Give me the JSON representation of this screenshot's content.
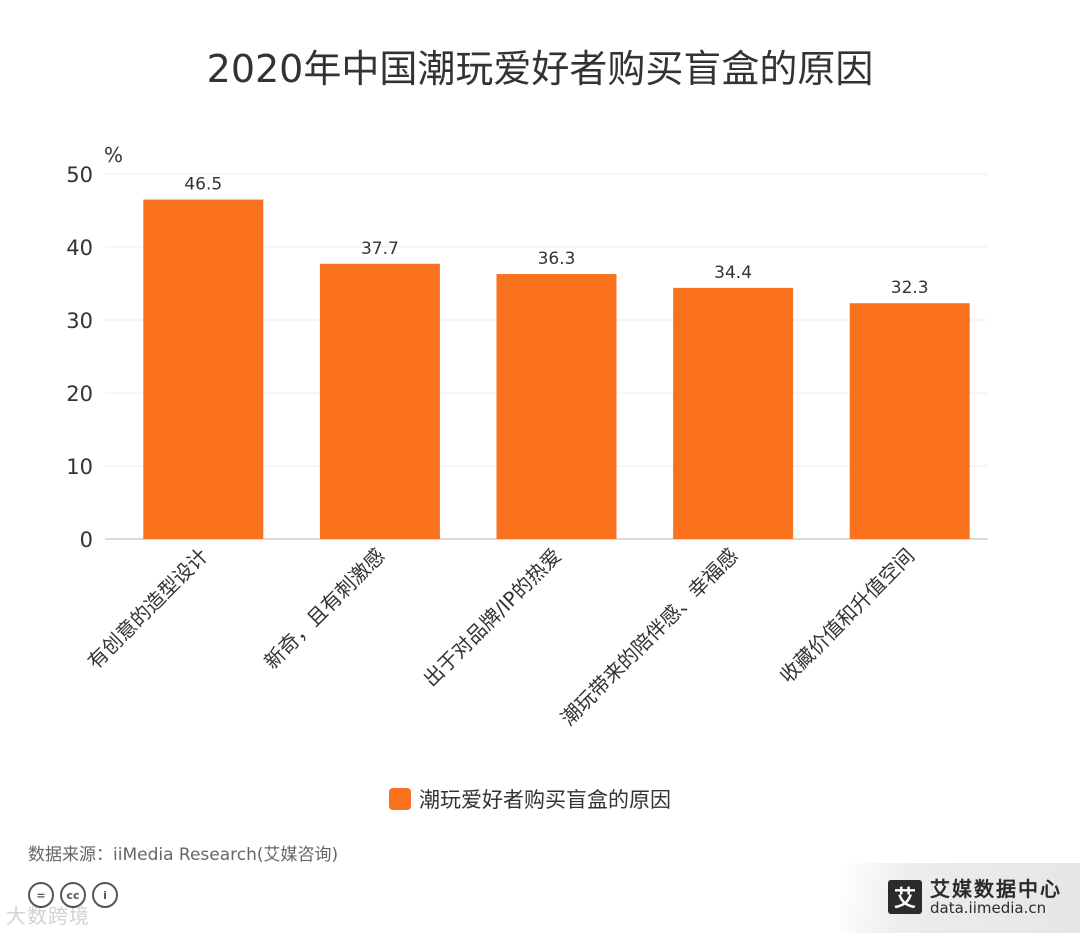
{
  "chart_data": {
    "type": "bar",
    "title": "2020年中国潮玩爱好者购买盲盒的原因",
    "ylabel": "%",
    "ylim": [
      0,
      50
    ],
    "yticks": [
      0,
      10,
      20,
      30,
      40,
      50
    ],
    "grid": true,
    "categories": [
      "有创意的造型设计",
      "新奇，且有刺激感",
      "出于对品牌/IP的热爱",
      "潮玩带来的陪伴感、幸福感",
      "收藏价值和升值空间"
    ],
    "series": [
      {
        "name": "潮玩爱好者购买盲盒的原因",
        "values": [
          46.5,
          37.7,
          36.3,
          34.4,
          32.3
        ]
      }
    ],
    "legend_position": "bottom-center"
  },
  "colors": {
    "bar": "#FA721E",
    "grid": "#ececec",
    "axis": "#cfcfcf"
  },
  "source": "数据来源：iiMedia Research(艾媒咨询)",
  "watermark": "大数跨境",
  "brand": {
    "icon_text": "艾",
    "name": "艾媒数据中心",
    "url": "data.iimedia.cn"
  },
  "cc_icons": [
    "=",
    "cc",
    "i"
  ]
}
